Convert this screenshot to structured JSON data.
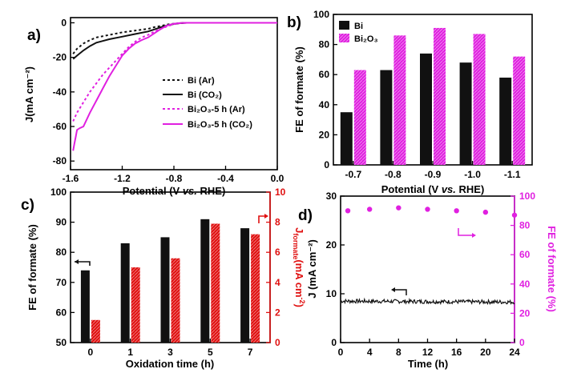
{
  "colors": {
    "black": "#111111",
    "magenta": "#e020e0",
    "red": "#e01010"
  },
  "chart_data": [
    {
      "panel": "a)",
      "type": "line",
      "xlabel": "Potential (V vs. RHE)",
      "ylabel": "J(mA cm⁻²)",
      "xlim": [
        -1.6,
        0.0
      ],
      "ylim": [
        -85,
        3
      ],
      "xticks": [
        "-1.6",
        "-1.2",
        "-0.8",
        "-0.4",
        "0.0"
      ],
      "yticks": [
        "0",
        "-20",
        "-40",
        "-60",
        "-80"
      ],
      "legend_position": "bottom-right",
      "series": [
        {
          "name": "Bi (Ar)",
          "style": "dotted",
          "color": "#111111",
          "x": [
            -1.58,
            -1.55,
            -1.5,
            -1.45,
            -1.4,
            -1.3,
            -1.2,
            -1.1,
            -1.0,
            -0.95,
            -0.9,
            -0.85,
            -0.8,
            -0.75,
            -0.7,
            -0.6,
            -0.4,
            -0.2,
            0.0
          ],
          "y": [
            -18,
            -15,
            -12,
            -10,
            -8.5,
            -7,
            -5.5,
            -4.5,
            -3.5,
            -2.5,
            -1.8,
            -1,
            -0.5,
            -0.2,
            0,
            0,
            0,
            0,
            0
          ]
        },
        {
          "name": "Bi (CO₂)",
          "style": "solid",
          "color": "#111111",
          "x": [
            -1.58,
            -1.55,
            -1.5,
            -1.45,
            -1.4,
            -1.3,
            -1.2,
            -1.1,
            -1.0,
            -0.95,
            -0.9,
            -0.85,
            -0.8,
            -0.75,
            -0.7,
            -0.6,
            -0.4,
            -0.2,
            0.0
          ],
          "y": [
            -21,
            -19,
            -16,
            -13.5,
            -11.5,
            -9.5,
            -8,
            -6.5,
            -5,
            -3.8,
            -2.5,
            -1.5,
            -0.7,
            -0.2,
            0,
            0,
            0,
            0,
            0
          ]
        },
        {
          "name": "Bi₂O₃-5 h (Ar)",
          "style": "dotted",
          "color": "#e020e0",
          "x": [
            -1.58,
            -1.55,
            -1.5,
            -1.45,
            -1.4,
            -1.35,
            -1.3,
            -1.25,
            -1.2,
            -1.15,
            -1.1,
            -1.05,
            -1.0,
            -0.95,
            -0.9,
            -0.85,
            -0.8,
            -0.75,
            -0.7,
            -0.6,
            -0.4,
            -0.2,
            0.0
          ],
          "y": [
            -57,
            -52,
            -46,
            -40,
            -35,
            -30,
            -26,
            -22,
            -18,
            -14,
            -11,
            -8.5,
            -7,
            -5,
            -3.5,
            -2,
            -0.8,
            -0.2,
            0,
            0,
            0,
            0,
            0
          ]
        },
        {
          "name": "Bi₂O₃-5 h (CO₂)",
          "style": "solid",
          "color": "#e020e0",
          "x": [
            -1.58,
            -1.57,
            -1.56,
            -1.55,
            -1.53,
            -1.5,
            -1.45,
            -1.4,
            -1.35,
            -1.3,
            -1.25,
            -1.2,
            -1.15,
            -1.1,
            -1.05,
            -1.0,
            -0.95,
            -0.9,
            -0.85,
            -0.8,
            -0.75,
            -0.7,
            -0.6,
            -0.4,
            -0.2,
            0.0
          ],
          "y": [
            -74,
            -70,
            -66,
            -62,
            -61,
            -60,
            -52,
            -45,
            -38,
            -31,
            -25,
            -19,
            -15,
            -12,
            -10,
            -8.5,
            -6,
            -3.5,
            -1.5,
            -0.5,
            -0.1,
            0,
            0,
            0,
            0,
            0
          ]
        }
      ]
    },
    {
      "panel": "b)",
      "type": "bar",
      "xlabel": "Potential (V vs. RHE)",
      "ylabel": "FE of formate (%)",
      "categories": [
        "-0.7",
        "-0.8",
        "-0.9",
        "-1.0",
        "-1.1"
      ],
      "ylim": [
        0,
        100
      ],
      "yticks": [
        "0",
        "20",
        "40",
        "60",
        "80",
        "100"
      ],
      "legend_position": "top-left",
      "series": [
        {
          "name": "Bi",
          "color": "#111111",
          "values": [
            35,
            63,
            74,
            68,
            58
          ]
        },
        {
          "name": "Bi₂O₃",
          "color": "#e020e0",
          "values": [
            63,
            86,
            91,
            87,
            72
          ]
        }
      ]
    },
    {
      "panel": "c)",
      "type": "bar",
      "xlabel": "Oxidation time (h)",
      "ylabel": "FE of formate (%)",
      "y2label": "J formate (mA cm⁻²)",
      "categories": [
        "0",
        "1",
        "3",
        "5",
        "7"
      ],
      "ylim": [
        50,
        100
      ],
      "y2lim": [
        0,
        10
      ],
      "yticks": [
        "50",
        "60",
        "70",
        "80",
        "90",
        "100"
      ],
      "y2ticks": [
        "0",
        "2",
        "4",
        "6",
        "8",
        "10"
      ],
      "series": [
        {
          "name": "FE of formate",
          "axis": "left",
          "color": "#111111",
          "values": [
            74,
            83,
            85,
            91,
            88
          ]
        },
        {
          "name": "J formate",
          "axis": "right",
          "color": "#e01010",
          "values": [
            1.5,
            5.0,
            5.6,
            7.9,
            7.2
          ]
        }
      ]
    },
    {
      "panel": "d)",
      "type": "line+scatter",
      "xlabel": "Time (h)",
      "ylabel": "J (mA cm⁻²)",
      "y2label": "FE of formate (%)",
      "xlim": [
        0,
        24
      ],
      "ylim": [
        0,
        30
      ],
      "y2lim": [
        0,
        100
      ],
      "xticks": [
        "0",
        "4",
        "8",
        "12",
        "16",
        "20",
        "24"
      ],
      "yticks": [
        "0",
        "10",
        "20",
        "30"
      ],
      "y2ticks": [
        "0",
        "20",
        "40",
        "60",
        "80",
        "100"
      ],
      "series": [
        {
          "name": "J",
          "axis": "left",
          "color": "#111111",
          "x": [
            0,
            24
          ],
          "y": [
            8.5,
            8.3
          ]
        },
        {
          "name": "FE of formate",
          "axis": "right",
          "color": "#e020e0",
          "x": [
            1,
            4,
            8,
            12,
            16,
            20,
            24
          ],
          "y": [
            90,
            91,
            92,
            91,
            90,
            89,
            87
          ]
        }
      ]
    }
  ]
}
